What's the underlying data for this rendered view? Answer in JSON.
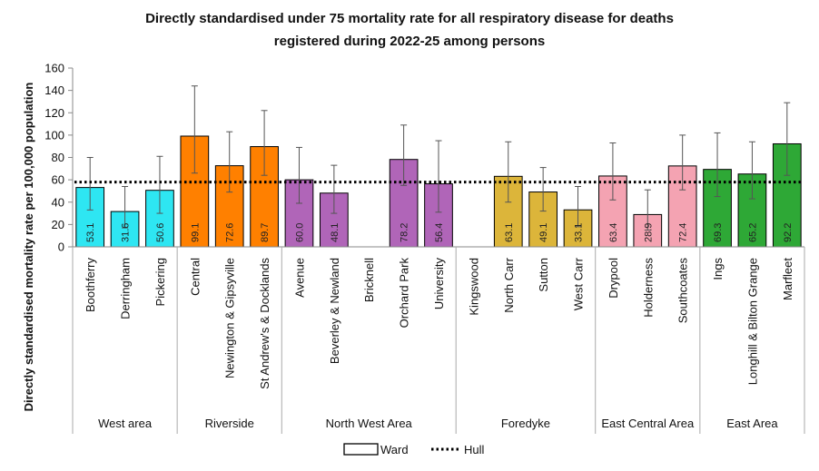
{
  "chart_data": {
    "type": "bar",
    "title_lines": [
      "Directly standardised under 75 mortality rate for all respiratory disease for deaths",
      "registered during 2022-25 among persons"
    ],
    "ylabel": "Directly standardised mortality rate per 100,000 population",
    "xlabel": "",
    "ylim": [
      0,
      160
    ],
    "yticks": [
      "0",
      "20",
      "40",
      "60",
      "80",
      "100",
      "120",
      "140",
      "160"
    ],
    "reference": {
      "name": "Hull",
      "value": 58
    },
    "legend": {
      "bar_label": "Ward",
      "line_label": "Hull",
      "placement": "bottom"
    },
    "grid": false,
    "groups": [
      {
        "name": "West area",
        "color": "#2ee6f2",
        "wards": [
          {
            "name": "Boothferry",
            "value": 53.1,
            "label": "53.1",
            "lci": 33,
            "uci": 80
          },
          {
            "name": "Derringham",
            "value": 31.6,
            "label": "31.6",
            "lci": 17,
            "uci": 54
          },
          {
            "name": "Pickering",
            "value": 50.6,
            "label": "50.6",
            "lci": 30,
            "uci": 81
          }
        ]
      },
      {
        "name": "Riverside",
        "color": "#ff8000",
        "wards": [
          {
            "name": "Central",
            "value": 99.1,
            "label": "99.1",
            "lci": 66,
            "uci": 144
          },
          {
            "name": "Newington & Gipsyville",
            "value": 72.6,
            "label": "72.6",
            "lci": 49,
            "uci": 103
          },
          {
            "name": "St Andrew's & Docklands",
            "value": 89.7,
            "label": "89.7",
            "lci": 64,
            "uci": 122
          }
        ]
      },
      {
        "name": "North West Area",
        "color": "#b065b8",
        "wards": [
          {
            "name": "Avenue",
            "value": 60.0,
            "label": "60.0",
            "lci": 39,
            "uci": 89
          },
          {
            "name": "Beverley & Newland",
            "value": 48.1,
            "label": "48.1",
            "lci": 30,
            "uci": 73
          },
          {
            "name": "Bricknell",
            "value": null,
            "label": "",
            "lci": null,
            "uci": null
          },
          {
            "name": "Orchard Park",
            "value": 78.2,
            "label": "78.2",
            "lci": 55,
            "uci": 109
          },
          {
            "name": "University",
            "value": 56.4,
            "label": "56.4",
            "lci": 31,
            "uci": 95
          }
        ]
      },
      {
        "name": "Foredyke",
        "color": "#dcb53a",
        "wards": [
          {
            "name": "Kingswood",
            "value": null,
            "label": "",
            "lci": null,
            "uci": null
          },
          {
            "name": "North Carr",
            "value": 63.1,
            "label": "63.1",
            "lci": 40,
            "uci": 94
          },
          {
            "name": "Sutton",
            "value": 49.1,
            "label": "49.1",
            "lci": 32,
            "uci": 71
          },
          {
            "name": "West Carr",
            "value": 33.1,
            "label": "33.1",
            "lci": 18,
            "uci": 54
          }
        ]
      },
      {
        "name": "East Central Area",
        "color": "#f4a3b2",
        "wards": [
          {
            "name": "Drypool",
            "value": 63.4,
            "label": "63.4",
            "lci": 42,
            "uci": 93
          },
          {
            "name": "Holderness",
            "value": 28.9,
            "label": "28.9",
            "lci": 15,
            "uci": 51
          },
          {
            "name": "Southcoates",
            "value": 72.4,
            "label": "72.4",
            "lci": 51,
            "uci": 100
          }
        ]
      },
      {
        "name": "East Area",
        "color": "#2ea836",
        "wards": [
          {
            "name": "Ings",
            "value": 69.3,
            "label": "69.3",
            "lci": 45,
            "uci": 102
          },
          {
            "name": "Longhill & Bilton Grange",
            "value": 65.2,
            "label": "65.2",
            "lci": 43,
            "uci": 94
          },
          {
            "name": "Marfleet",
            "value": 92.2,
            "label": "92.2",
            "lci": 64,
            "uci": 129
          }
        ]
      }
    ]
  }
}
